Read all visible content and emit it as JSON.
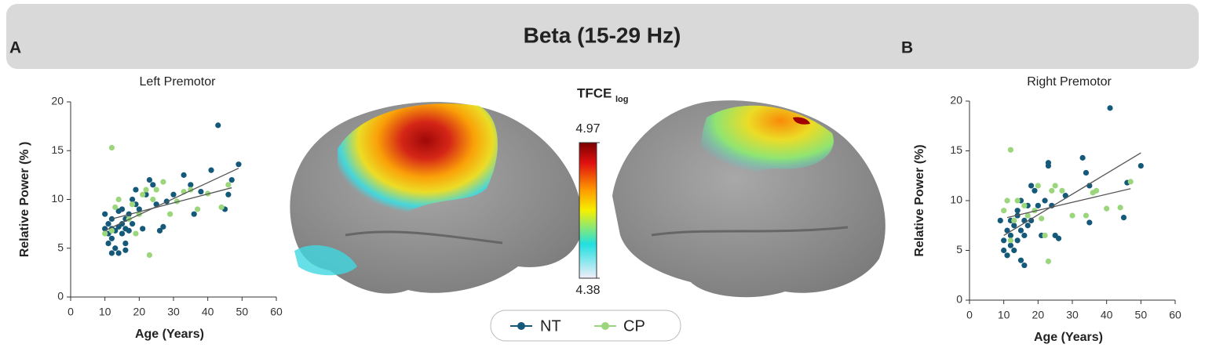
{
  "title": "Beta (15-29 Hz)",
  "panel_labels": [
    "A",
    "B"
  ],
  "colorbar": {
    "title": "TFCE",
    "title_subscript": "log",
    "lim": [
      4.38,
      4.97
    ],
    "ticks": [
      4.38,
      4.97
    ]
  },
  "chart_data": [
    {
      "type": "scatter",
      "title": "Left Premotor",
      "x_label": "Age (Years)",
      "y_label": "Relative Power (% )",
      "xlim": [
        0,
        60
      ],
      "xticks": [
        0,
        10,
        20,
        30,
        40,
        50,
        60
      ],
      "ylim": [
        0,
        20
      ],
      "yticks": [
        0,
        5,
        10,
        15,
        20
      ],
      "series": [
        {
          "name": "NT",
          "color": "#15597a",
          "x": [
            10,
            10,
            11,
            11,
            12,
            12,
            12,
            13,
            13,
            14,
            14,
            15,
            15,
            15,
            16,
            16,
            16,
            17,
            17,
            18,
            18,
            19,
            19,
            20,
            21,
            22,
            23,
            24,
            25,
            26,
            27,
            28,
            30,
            33,
            35,
            36,
            38,
            41,
            43,
            45,
            46,
            47,
            49,
            12,
            14,
            16,
            11
          ],
          "values": [
            8.5,
            7,
            6.5,
            7.5,
            6,
            8,
            7,
            5,
            6.8,
            7.2,
            8.8,
            6.5,
            7.5,
            9,
            5.5,
            7,
            8,
            6.8,
            8.5,
            7.5,
            10,
            9.5,
            11,
            9,
            7,
            10.5,
            12,
            11.5,
            9.5,
            6.8,
            7.2,
            9.8,
            10.5,
            12.5,
            11.5,
            8.5,
            10.8,
            13,
            17.6,
            9,
            10.5,
            12,
            13.6,
            4.5,
            4.5,
            4.8,
            5.5
          ],
          "fit": {
            "x": [
              10,
              49
            ],
            "values": [
              6.8,
              13.2
            ]
          }
        },
        {
          "name": "CP",
          "color": "#9cd67c",
          "x": [
            12,
            10,
            12,
            13,
            14,
            17,
            18,
            19,
            20,
            21,
            22,
            23,
            24,
            25,
            27,
            29,
            31,
            33,
            35,
            37,
            40,
            44,
            46
          ],
          "values": [
            15.3,
            6.5,
            6.8,
            9.2,
            10,
            8,
            9.5,
            6.5,
            8.5,
            10.5,
            11,
            4.3,
            10,
            11,
            11.8,
            8.5,
            9.8,
            10.8,
            11,
            9,
            10.6,
            9.2,
            11.5
          ],
          "fit": {
            "x": [
              12,
              47
            ],
            "values": [
              8.0,
              11.2
            ]
          }
        }
      ]
    },
    {
      "type": "scatter",
      "title": "Right Premotor",
      "x_label": "Age (Years)",
      "y_label": "Relative Power (%)",
      "xlim": [
        0,
        60
      ],
      "xticks": [
        0,
        10,
        20,
        30,
        40,
        50,
        60
      ],
      "ylim": [
        0,
        20
      ],
      "yticks": [
        0,
        5,
        10,
        15,
        20
      ],
      "series": [
        {
          "name": "NT",
          "color": "#15597a",
          "x": [
            9,
            10,
            10,
            11,
            11,
            12,
            12,
            12,
            13,
            13,
            14,
            14,
            14,
            15,
            15,
            15,
            16,
            16,
            16,
            17,
            17,
            18,
            18,
            19,
            20,
            21,
            22,
            23,
            23,
            24,
            25,
            26,
            28,
            33,
            34,
            35,
            35,
            41,
            45,
            46,
            50
          ],
          "values": [
            8,
            5,
            6,
            4.5,
            7,
            5.5,
            6.5,
            8,
            5,
            7.5,
            6,
            8.5,
            9,
            4,
            7,
            10,
            3.5,
            6.5,
            8,
            7.5,
            9.5,
            8,
            11.5,
            11,
            9.5,
            6.5,
            10,
            13.5,
            13.8,
            9.5,
            6.5,
            6.2,
            10.5,
            14.3,
            12.8,
            11.5,
            7.8,
            19.3,
            8.3,
            11.8,
            13.5
          ],
          "fit": {
            "x": [
              10,
              50
            ],
            "values": [
              6.5,
              14.8
            ]
          }
        },
        {
          "name": "CP",
          "color": "#9cd67c",
          "x": [
            12,
            10,
            11,
            12,
            13,
            14,
            16,
            17,
            19,
            20,
            21,
            22,
            23,
            24,
            25,
            27,
            30,
            34,
            36,
            37,
            40,
            44,
            47
          ],
          "values": [
            15.1,
            9,
            10,
            6,
            8,
            10,
            9.5,
            8.5,
            9,
            11.5,
            8.2,
            6.5,
            3.9,
            11,
            11.5,
            11,
            8.5,
            8.5,
            10.8,
            11,
            9.2,
            9.3,
            11.9
          ],
          "fit": {
            "x": [
              11,
              47
            ],
            "values": [
              8.3,
              11.2
            ]
          }
        }
      ]
    }
  ]
}
